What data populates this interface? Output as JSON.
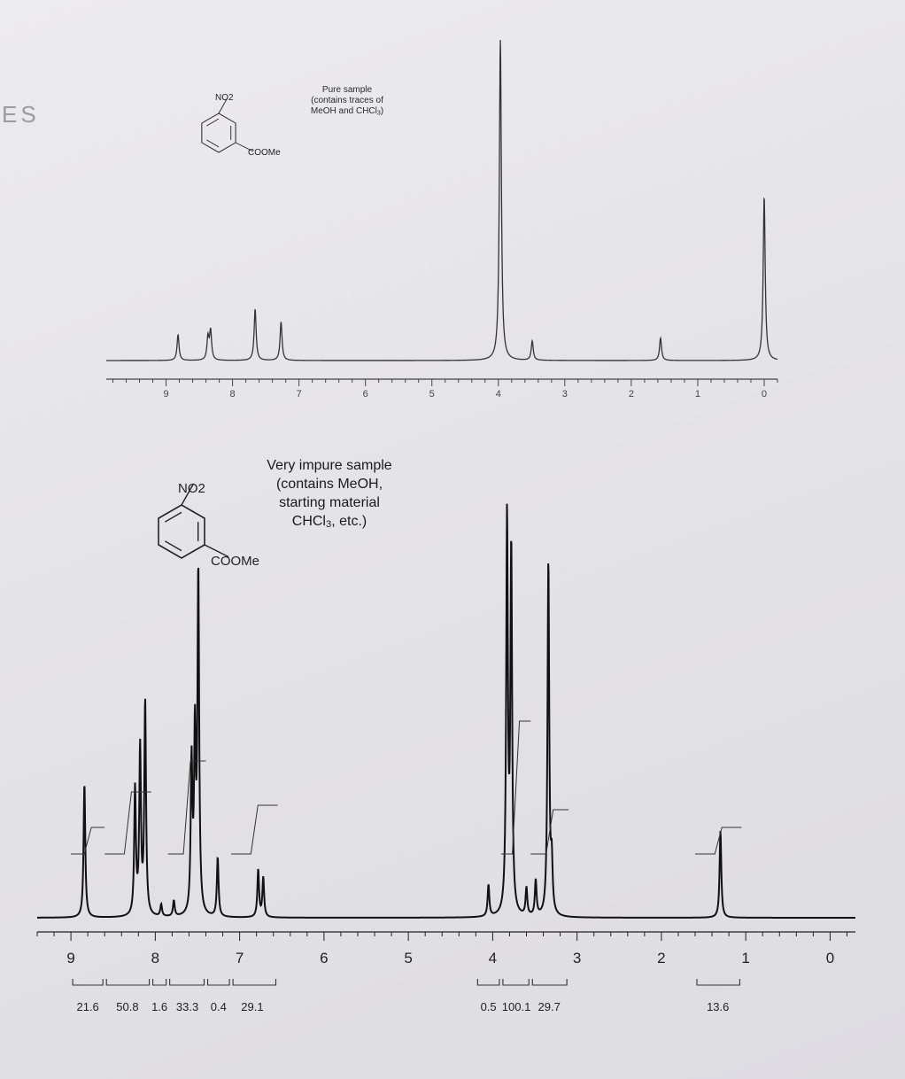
{
  "page_margin_text": "ES",
  "chart_data": [
    {
      "type": "line",
      "kind": "1H NMR spectrum",
      "title": "",
      "annotation": [
        "Pure sample",
        "(contains traces of",
        "MeOH and CHCl",
        "3",
        ")"
      ],
      "structure_labels": {
        "top": "NO2",
        "bottom": "COOMe"
      },
      "xlabel": "",
      "ylabel": "",
      "x_axis": {
        "reversed": true,
        "ticks": [
          9,
          8,
          7,
          6,
          5,
          4,
          3,
          2,
          1,
          0
        ],
        "xlim": [
          9.9,
          -0.2
        ]
      },
      "grid": false,
      "peaks": [
        {
          "ppm": 8.82,
          "height": 0.08
        },
        {
          "ppm": 8.37,
          "height": 0.07
        },
        {
          "ppm": 8.33,
          "height": 0.09
        },
        {
          "ppm": 7.66,
          "height": 0.16
        },
        {
          "ppm": 7.27,
          "height": 0.12
        },
        {
          "ppm": 3.97,
          "height": 1.0
        },
        {
          "ppm": 3.49,
          "height": 0.06
        },
        {
          "ppm": 1.56,
          "height": 0.07
        },
        {
          "ppm": 0.0,
          "height": 0.51
        }
      ]
    },
    {
      "type": "line",
      "kind": "1H NMR spectrum",
      "title": "",
      "annotation": [
        "Very impure sample",
        "(contains MeOH,",
        "starting material",
        "CHCl",
        "3",
        ", etc.)"
      ],
      "structure_labels": {
        "top": "NO2",
        "bottom": "COOMe"
      },
      "xlabel": "",
      "ylabel": "",
      "x_axis": {
        "reversed": true,
        "ticks": [
          9,
          8,
          7,
          6,
          5,
          4,
          3,
          2,
          1,
          0
        ],
        "xlim": [
          9.4,
          -0.3
        ]
      },
      "grid": false,
      "peaks": [
        {
          "ppm": 8.84,
          "height": 0.34
        },
        {
          "ppm": 8.24,
          "height": 0.32
        },
        {
          "ppm": 8.18,
          "height": 0.42
        },
        {
          "ppm": 8.12,
          "height": 0.54
        },
        {
          "ppm": 7.93,
          "height": 0.03
        },
        {
          "ppm": 7.78,
          "height": 0.04
        },
        {
          "ppm": 7.57,
          "height": 0.38
        },
        {
          "ppm": 7.53,
          "height": 0.44
        },
        {
          "ppm": 7.49,
          "height": 0.86
        },
        {
          "ppm": 7.26,
          "height": 0.15
        },
        {
          "ppm": 6.78,
          "height": 0.12
        },
        {
          "ppm": 6.72,
          "height": 0.1
        },
        {
          "ppm": 4.05,
          "height": 0.08
        },
        {
          "ppm": 3.83,
          "height": 1.0
        },
        {
          "ppm": 3.78,
          "height": 0.92
        },
        {
          "ppm": 3.6,
          "height": 0.07
        },
        {
          "ppm": 3.49,
          "height": 0.09
        },
        {
          "ppm": 3.34,
          "height": 0.9
        },
        {
          "ppm": 3.3,
          "height": 0.12
        },
        {
          "ppm": 1.3,
          "height": 0.22
        }
      ],
      "integration_ranges": [
        {
          "from": 9.0,
          "to": 8.6
        },
        {
          "from": 8.6,
          "to": 8.05
        },
        {
          "from": 8.05,
          "to": 7.85
        },
        {
          "from": 7.85,
          "to": 7.4
        },
        {
          "from": 7.4,
          "to": 7.1
        },
        {
          "from": 7.1,
          "to": 6.55
        },
        {
          "from": 4.2,
          "to": 3.9
        },
        {
          "from": 3.9,
          "to": 3.55
        },
        {
          "from": 3.55,
          "to": 3.1
        },
        {
          "from": 1.6,
          "to": 1.05
        }
      ],
      "integrals": [
        "21.6",
        "50.8",
        "1.6",
        "33.3",
        "0.4",
        "29.1",
        "0.5",
        "100.1",
        "29.7",
        "13.6"
      ]
    }
  ]
}
